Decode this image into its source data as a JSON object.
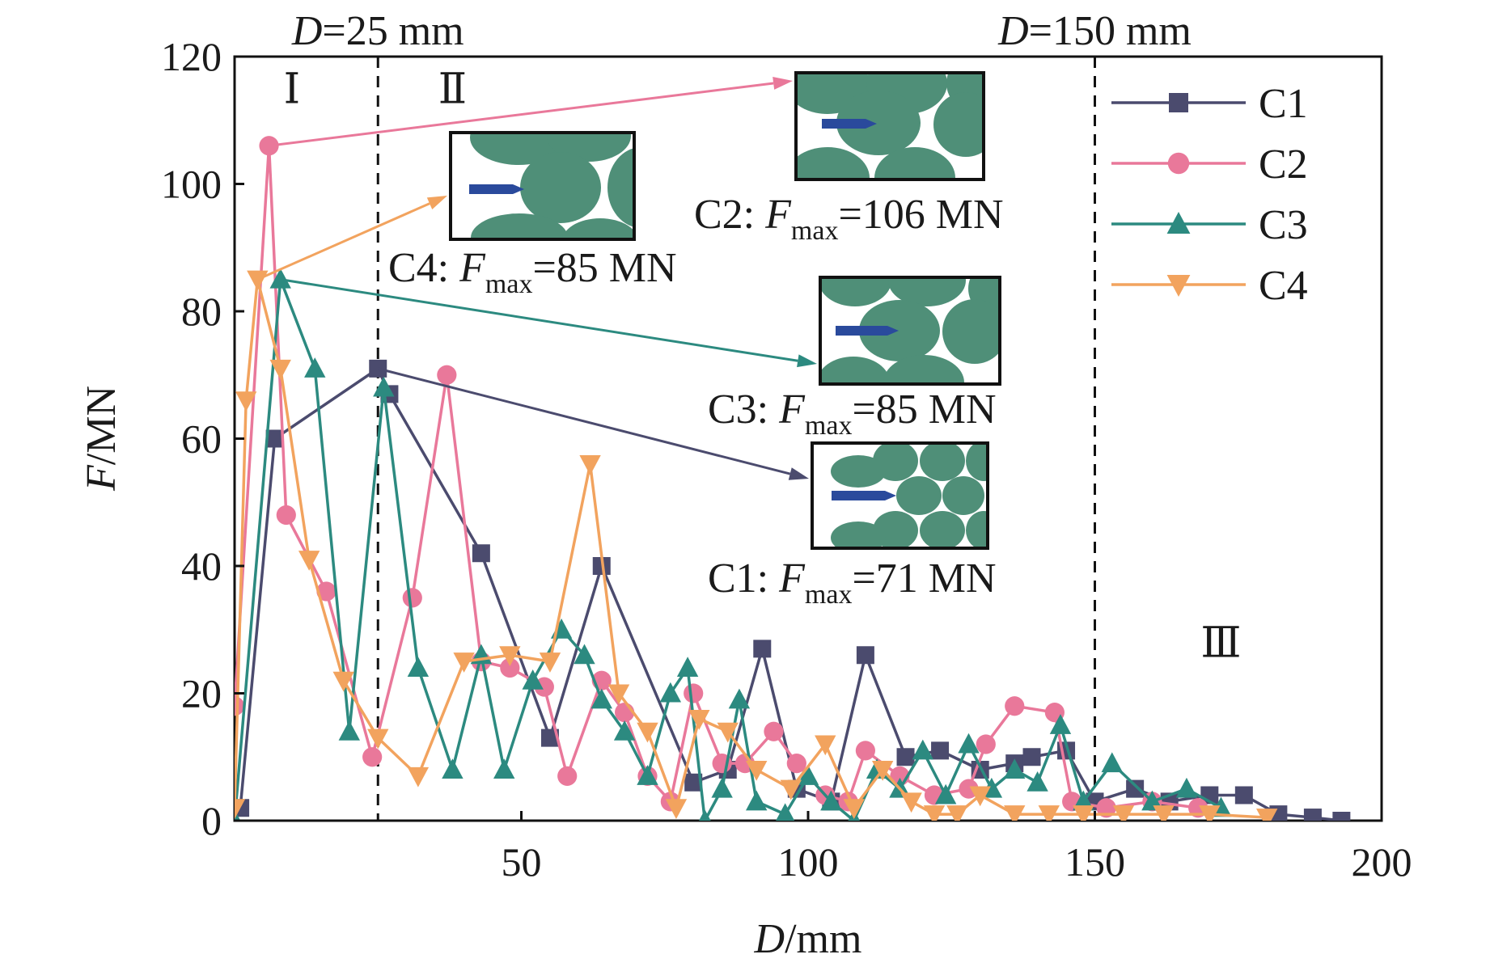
{
  "chart_data": {
    "type": "line",
    "xlabel": {
      "italic": "D",
      "rest": "/mm"
    },
    "ylabel": {
      "italic": "F",
      "rest": "/MN"
    },
    "xlim": [
      0,
      200
    ],
    "ylim": [
      0,
      120
    ],
    "xticks": [
      50,
      100,
      150,
      200
    ],
    "yticks": [
      0,
      20,
      40,
      60,
      80,
      100,
      120
    ],
    "grid": false,
    "legend_position": "top-right",
    "reference_lines": [
      {
        "x": 25,
        "italic": "D",
        "rest": "=25 mm"
      },
      {
        "x": 150,
        "italic": "D",
        "rest": "=150 mm"
      }
    ],
    "regions": [
      {
        "label": "Ⅰ",
        "x": 10,
        "y": 115
      },
      {
        "label": "Ⅱ",
        "x": 38,
        "y": 115
      },
      {
        "label": "Ⅲ",
        "x": 172,
        "y": 28
      }
    ],
    "series": [
      {
        "name": "C1",
        "color": "#4b4b6e",
        "marker": "square",
        "x": [
          1,
          7,
          25,
          27,
          43,
          55,
          64,
          80,
          86,
          92,
          98,
          104,
          110,
          117,
          123,
          130,
          136,
          139,
          145,
          150,
          157,
          163,
          170,
          176,
          182,
          188,
          193
        ],
        "y": [
          2,
          60,
          71,
          67,
          42,
          13,
          40,
          6,
          8,
          27,
          5,
          3,
          26,
          10,
          11,
          8,
          9,
          10,
          11,
          3,
          5,
          3,
          4,
          4,
          1,
          0.5,
          0
        ]
      },
      {
        "name": "C2",
        "color": "#e9789a",
        "marker": "circle",
        "x": [
          0,
          6,
          9,
          16,
          24,
          31,
          37,
          43,
          48,
          54,
          58,
          64,
          68,
          72,
          76,
          80,
          85,
          89,
          94,
          98,
          103,
          107,
          110,
          116,
          122,
          128,
          131,
          136,
          143,
          146,
          152,
          160,
          168
        ],
        "y": [
          18,
          106,
          48,
          36,
          10,
          35,
          70,
          25,
          24,
          21,
          7,
          22,
          17,
          7,
          3,
          20,
          9,
          9,
          14,
          9,
          4,
          3,
          11,
          7,
          4,
          5,
          12,
          18,
          17,
          3,
          2,
          3,
          2
        ]
      },
      {
        "name": "C3",
        "color": "#2c8a80",
        "marker": "triangle-up",
        "x": [
          0,
          8,
          14,
          20,
          26,
          32,
          38,
          43,
          47,
          52,
          57,
          61,
          64,
          68,
          72,
          76,
          79,
          82,
          85,
          88,
          91,
          96,
          100,
          104,
          108,
          112,
          116,
          120,
          124,
          128,
          132,
          136,
          140,
          144,
          148,
          153,
          160,
          166,
          172
        ],
        "y": [
          0,
          85,
          71,
          14,
          68,
          24,
          8,
          26,
          8,
          22,
          30,
          26,
          19,
          14,
          7,
          20,
          24,
          0,
          5,
          19,
          3,
          1,
          7,
          3,
          0,
          8,
          5,
          11,
          4,
          12,
          5,
          8,
          6,
          15,
          3,
          9,
          3,
          5,
          2
        ]
      },
      {
        "name": "C4",
        "color": "#f2a35e",
        "marker": "triangle-down",
        "x": [
          0,
          2,
          4,
          8,
          13,
          19,
          25,
          32,
          40,
          48,
          55,
          62,
          67,
          72,
          77,
          81,
          86,
          91,
          97,
          103,
          108,
          113,
          118,
          122,
          126,
          130,
          136,
          142,
          148,
          155,
          162,
          170,
          180
        ],
        "y": [
          2,
          66,
          85,
          71,
          41,
          22,
          13,
          7,
          25,
          26,
          25,
          56,
          20,
          14,
          2,
          16,
          14,
          8,
          5,
          12,
          2,
          8,
          3,
          1,
          1,
          4,
          1,
          1,
          1,
          1,
          1,
          1,
          0.5
        ]
      }
    ],
    "insets": [
      {
        "id": "c2",
        "label": {
          "prefix": "C2: ",
          "italic": "F",
          "sub": "max",
          "value": "=106 MN"
        },
        "arrow_color": "#e9789a",
        "from_series": "C2"
      },
      {
        "id": "c4",
        "label": {
          "prefix": "C4: ",
          "italic": "F",
          "sub": "max",
          "value": "=85 MN"
        },
        "arrow_color": "#f2a35e",
        "from_series": "C4"
      },
      {
        "id": "c3",
        "label": {
          "prefix": "C3: ",
          "italic": "F",
          "sub": "max",
          "value": "=85 MN"
        },
        "arrow_color": "#2c8a80",
        "from_series": "C3"
      },
      {
        "id": "c1",
        "label": {
          "prefix": "C1: ",
          "italic": "F",
          "sub": "max",
          "value": "=71 MN"
        },
        "arrow_color": "#4b4b6e",
        "from_series": "C1"
      }
    ],
    "inset_colors": {
      "grain": "#4f8f78",
      "indenter": "#2a4a9c",
      "frame": "#111111"
    }
  }
}
